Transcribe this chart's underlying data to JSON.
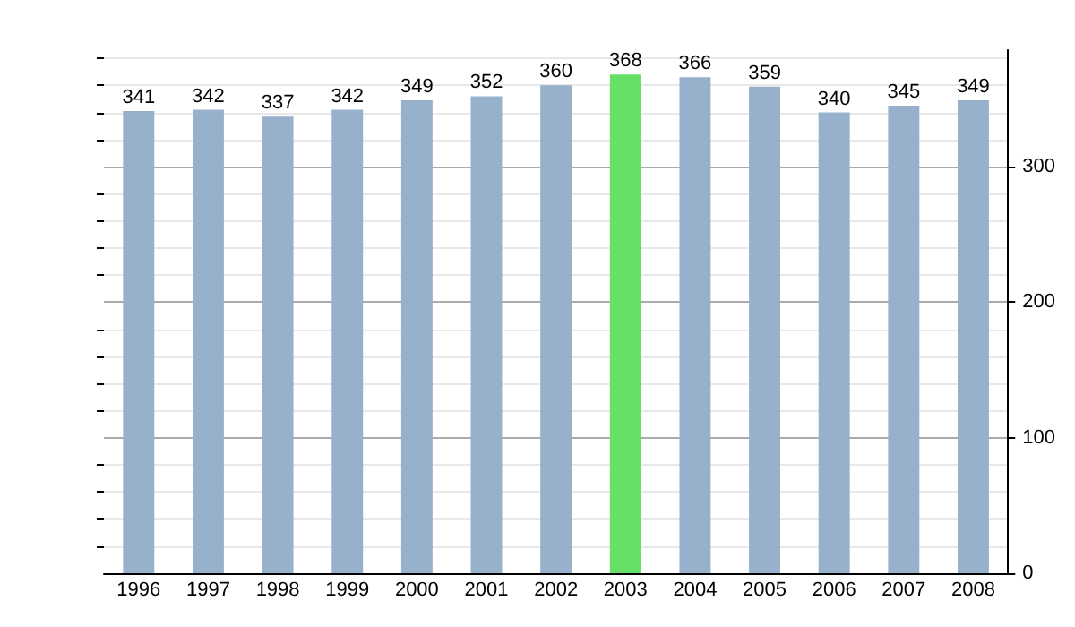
{
  "chart_data": {
    "type": "bar",
    "categories": [
      "1996",
      "1997",
      "1998",
      "1999",
      "2000",
      "2001",
      "2002",
      "2003",
      "2004",
      "2005",
      "2006",
      "2007",
      "2008"
    ],
    "values": [
      341,
      342,
      337,
      342,
      349,
      352,
      360,
      368,
      366,
      359,
      340,
      345,
      349
    ],
    "colors": [
      "#97b1cc",
      "#97b1cc",
      "#97b1cc",
      "#97b1cc",
      "#97b1cc",
      "#97b1cc",
      "#97b1cc",
      "#66e066",
      "#97b1cc",
      "#97b1cc",
      "#97b1cc",
      "#97b1cc",
      "#97b1cc"
    ],
    "ylim": [
      0,
      386
    ],
    "yticks": [
      0,
      {
        "value": 20,
        "label": null
      },
      {
        "value": 40,
        "label": null
      },
      {
        "value": 60,
        "label": null
      },
      {
        "value": 80,
        "label": null
      },
      100,
      {
        "value": 120,
        "label": null
      },
      {
        "value": 140,
        "label": null
      },
      {
        "value": 160,
        "label": null
      },
      {
        "value": 180,
        "label": null
      },
      200,
      {
        "value": 220,
        "label": null
      },
      {
        "value": 240,
        "label": null
      },
      {
        "value": 260,
        "label": null
      },
      {
        "value": 280,
        "label": null
      },
      300,
      {
        "value": 320,
        "label": null
      },
      {
        "value": 340,
        "label": null
      },
      {
        "value": 360,
        "label": null
      },
      {
        "value": 380,
        "label": null
      }
    ],
    "grid": "y",
    "data_labels": true
  }
}
